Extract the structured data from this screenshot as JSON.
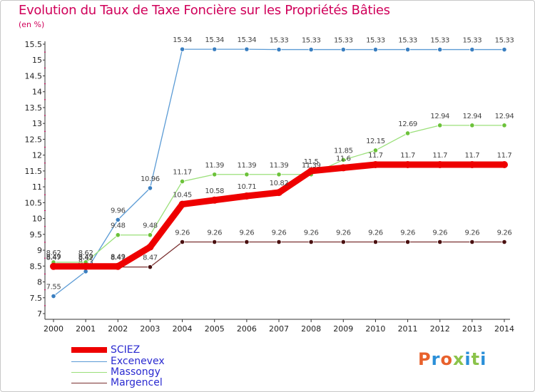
{
  "header": {
    "title": "Evolution du Taux de Taxe Foncière sur les Propriétés Bâties",
    "unit": "(en %)"
  },
  "logo": {
    "text": "Proxiti",
    "colors": [
      "#e8612c",
      "#2a8fd8",
      "#e8612c",
      "#8bc34a",
      "#2a8fd8",
      "#8bc34a",
      "#2a8fd8"
    ]
  },
  "chart_data": {
    "type": "line",
    "x": [
      2000,
      2001,
      2002,
      2003,
      2004,
      2005,
      2006,
      2007,
      2008,
      2009,
      2010,
      2011,
      2012,
      2013,
      2014
    ],
    "ylim": [
      7,
      15.5
    ],
    "yticks": [
      7,
      7.5,
      8,
      8.5,
      9,
      9.5,
      10,
      10.5,
      11,
      11.5,
      12,
      12.5,
      13,
      13.5,
      14,
      14.5,
      15,
      15.5
    ],
    "grid": false,
    "legend_position": "bottom-left",
    "series": [
      {
        "name": "Excenevex",
        "color": "#5b9bd5",
        "point_color": "#3a7fc1",
        "values": [
          7.55,
          8.33,
          9.96,
          10.96,
          15.34,
          15.34,
          15.34,
          15.33,
          15.33,
          15.33,
          15.33,
          15.33,
          15.33,
          15.33,
          15.33
        ],
        "labels": [
          "7.55",
          "8.33",
          "9.96",
          "10.96",
          "15.34",
          "15.34",
          "15.34",
          "15.33",
          "15.33",
          "15.33",
          "15.33",
          "15.33",
          "15.33",
          "15.33",
          "15.33"
        ]
      },
      {
        "name": "Massongy",
        "color": "#9be07a",
        "point_color": "#6cc23a",
        "values": [
          8.62,
          8.62,
          9.48,
          9.48,
          11.17,
          11.39,
          11.39,
          11.39,
          11.39,
          11.85,
          12.15,
          12.69,
          12.94,
          12.94,
          12.94
        ],
        "labels": [
          "8.62",
          "8.62",
          "9.48",
          "9.48",
          "11.17",
          "11.39",
          "11.39",
          "11.39",
          "11.39",
          "11.85",
          "12.15",
          "12.69",
          "12.94",
          "12.94",
          "12.94"
        ]
      },
      {
        "name": "Margencel",
        "color": "#7a3030",
        "point_color": "#4a1010",
        "values": [
          8.47,
          8.47,
          8.47,
          8.47,
          9.26,
          9.26,
          9.26,
          9.26,
          9.26,
          9.26,
          9.26,
          9.26,
          9.26,
          9.26,
          9.26
        ],
        "labels": [
          "8.47",
          "8.47",
          "8.47",
          "8.47",
          "9.26",
          "9.26",
          "9.26",
          "9.26",
          "9.26",
          "9.26",
          "9.26",
          "9.26",
          "9.26",
          "9.26",
          "9.26"
        ]
      },
      {
        "name": "SCIEZ",
        "color": "#ee0000",
        "point_color": "#ee0000",
        "values": [
          8.49,
          8.49,
          8.49,
          9.1,
          10.45,
          10.58,
          10.71,
          10.82,
          11.5,
          11.6,
          11.7,
          11.7,
          11.7,
          11.7,
          11.7
        ],
        "labels": [
          "8.49",
          "8.49",
          "8.49",
          "",
          "10.45",
          "10.58",
          "10.71",
          "10.82",
          "11.5",
          "11.6",
          "11.7",
          "11.7",
          "11.7",
          "11.7",
          "11.7"
        ]
      }
    ]
  }
}
